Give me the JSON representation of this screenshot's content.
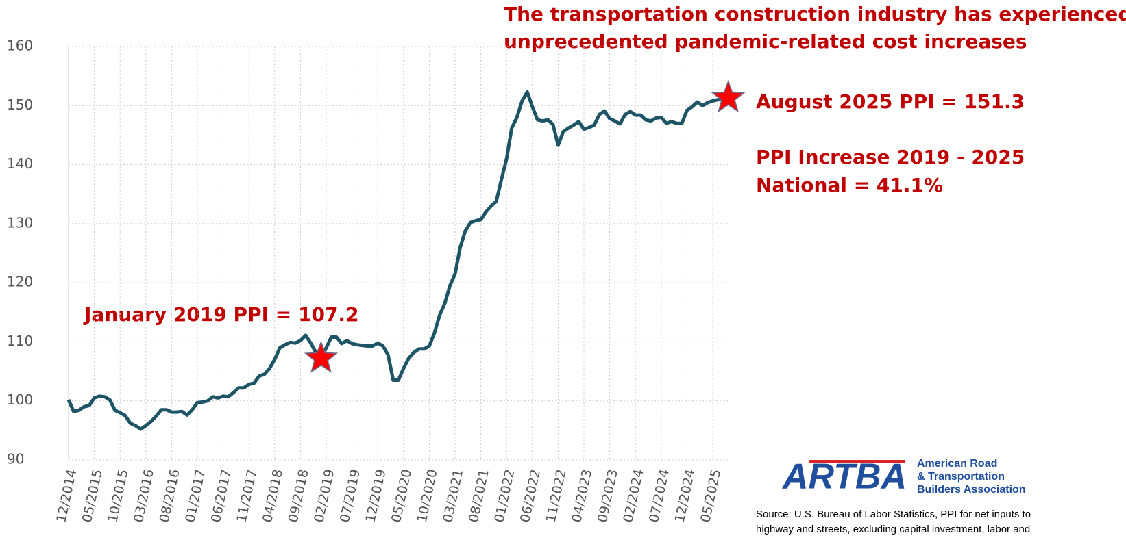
{
  "chart_data": {
    "type": "line",
    "title": [
      "The transportation construction industry has experienced",
      "unprecedented pandemic-related cost increases"
    ],
    "annotations": [
      "August 2025 PPI = 151.3",
      "PPI Increase 2019 - 2025",
      "National = 41.1%",
      "January 2019 PPI = 107.2"
    ],
    "logo": {
      "mark": "ARTBA",
      "name": [
        "American Road",
        "& Transportation",
        "Builders Association"
      ]
    },
    "source": [
      "Source: U.S. Bureau of Labor Statistics, PPI for net inputs to",
      "highway and streets, excluding capital investment, labor and"
    ],
    "categories": [
      "12/2014",
      null,
      null,
      null,
      null,
      "05/2015",
      null,
      null,
      null,
      null,
      "10/2015",
      null,
      null,
      null,
      null,
      "03/2016",
      null,
      null,
      null,
      null,
      "08/2016",
      null,
      null,
      null,
      null,
      "01/2017",
      null,
      null,
      null,
      null,
      "06/2017",
      null,
      null,
      null,
      null,
      "11/2017",
      null,
      null,
      null,
      null,
      "04/2018",
      null,
      null,
      null,
      null,
      "09/2018",
      null,
      null,
      null,
      null,
      "02/2019",
      null,
      null,
      null,
      null,
      "07/2019",
      null,
      null,
      null,
      null,
      "12/2019",
      null,
      null,
      null,
      null,
      "05/2020",
      null,
      null,
      null,
      null,
      "10/2020",
      null,
      null,
      null,
      null,
      "03/2021",
      null,
      null,
      null,
      null,
      "08/2021",
      null,
      null,
      null,
      null,
      "01/2022",
      null,
      null,
      null,
      null,
      "06/2022",
      null,
      null,
      null,
      null,
      "11/2022",
      null,
      null,
      null,
      null,
      "04/2023",
      null,
      null,
      null,
      null,
      "09/2023",
      null,
      null,
      null,
      null,
      "02/2024",
      null,
      null,
      null,
      null,
      "07/2024",
      null,
      null,
      null,
      null,
      "12/2024",
      null,
      null,
      null,
      null,
      "05/2025",
      null,
      null,
      null
    ],
    "series": [
      {
        "name": "PPI",
        "color": "#1d5566",
        "values": [
          100.2,
          98.2,
          98.4,
          99,
          99.2,
          100.5,
          100.8,
          100.7,
          100.2,
          98.4,
          98,
          97.5,
          96.2,
          95.8,
          95.2,
          95.8,
          96.5,
          97.4,
          98.5,
          98.5,
          98.1,
          98.1,
          98.2,
          97.6,
          98.5,
          99.7,
          99.8,
          100,
          100.7,
          100.5,
          100.8,
          100.7,
          101.4,
          102.2,
          102.2,
          102.8,
          103,
          104.2,
          104.5,
          105.5,
          107,
          109,
          109.5,
          109.9,
          109.8,
          110.2,
          111.1,
          109.8,
          108.2,
          107.2,
          109,
          110.8,
          110.8,
          109.7,
          110.2,
          109.7,
          109.5,
          109.4,
          109.3,
          109.3,
          109.8,
          109.3,
          107.8,
          103.5,
          103.5,
          105.5,
          107.2,
          108.2,
          108.8,
          108.8,
          109.3,
          111.5,
          114.5,
          116.5,
          119.5,
          121.5,
          126,
          128.8,
          130.2,
          130.5,
          130.7,
          132,
          133,
          133.8,
          137.5,
          141,
          146.2,
          148,
          150.8,
          152.3,
          149.8,
          147.6,
          147.4,
          147.6,
          146.8,
          143.3,
          145.6,
          146.2,
          146.7,
          147.3,
          146,
          146.3,
          146.7,
          148.5,
          149.1,
          147.8,
          147.4,
          146.9,
          148.5,
          149,
          148.4,
          148.4,
          147.6,
          147.4,
          147.9,
          148,
          147,
          147.3,
          147,
          147,
          149.2,
          149.8,
          150.6,
          150,
          150.5,
          150.8,
          151,
          151.2,
          151.3
        ]
      }
    ],
    "highlight_indices": [
      49,
      128
    ],
    "highlight_color": "#ff0000",
    "ylim": [
      90,
      160
    ],
    "yticks": [
      90,
      100,
      110,
      120,
      130,
      140,
      150,
      160
    ],
    "grid": true
  }
}
